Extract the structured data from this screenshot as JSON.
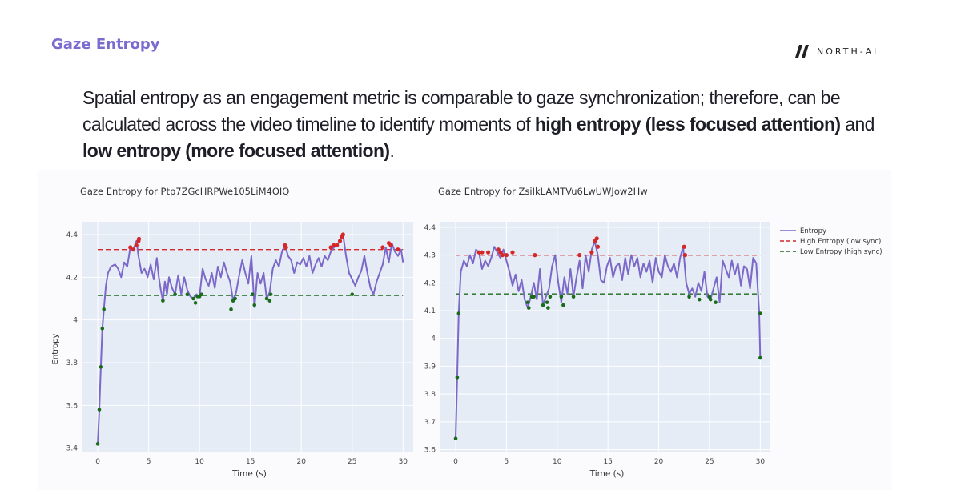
{
  "header": {
    "title": "Gaze Entropy",
    "logo_text": "NORTH-AI"
  },
  "body_text": {
    "part1": "Spatial entropy as an engagement metric is comparable to gaze synchronization; therefore, can be calculated across the video timeline to identify moments of ",
    "bold1": "high entropy (less focused attention)",
    "part2": " and ",
    "bold2": "low entropy (more focused attention)",
    "part3": "."
  },
  "colors": {
    "entropy_line": "#7b68c8",
    "high_threshold": "#d62728",
    "low_threshold": "#1a6b1a",
    "plot_bg": "#e5ecf6",
    "grid": "#ffffff"
  },
  "chart_data": [
    {
      "type": "line",
      "title": "Gaze Entropy for Ptp7ZGcHRPWe105LiM4OIQ",
      "xlabel": "Time (s)",
      "ylabel": "Entropy",
      "xlim": [
        -1.5,
        31
      ],
      "ylim": [
        3.38,
        4.46
      ],
      "xticks": [
        0,
        5,
        10,
        15,
        20,
        25,
        30
      ],
      "yticks": [
        3.4,
        3.6,
        3.8,
        4,
        4.2,
        4.4
      ],
      "ytick_labels": [
        "3.4",
        "3.6",
        "3.8",
        "4",
        "4.2",
        "4.4"
      ],
      "high_threshold": 4.33,
      "low_threshold": 4.115,
      "series": [
        {
          "name": "Entropy",
          "x": [
            0.0,
            0.15,
            0.3,
            0.45,
            0.6,
            0.8,
            1.0,
            1.3,
            1.7,
            2.0,
            2.3,
            2.6,
            2.9,
            3.2,
            3.5,
            3.8,
            4.0,
            4.3,
            4.6,
            4.9,
            5.2,
            5.5,
            5.8,
            6.0,
            6.2,
            6.4,
            6.6,
            6.8,
            7.0,
            7.3,
            7.6,
            7.9,
            8.2,
            8.5,
            8.8,
            9.1,
            9.4,
            9.7,
            10.0,
            10.3,
            10.6,
            10.9,
            11.2,
            11.5,
            11.8,
            12.1,
            12.4,
            12.7,
            13.0,
            13.3,
            13.6,
            13.9,
            14.2,
            14.5,
            14.8,
            15.1,
            15.4,
            15.7,
            16.0,
            16.3,
            16.6,
            16.9,
            17.2,
            17.5,
            17.8,
            18.1,
            18.4,
            18.7,
            19.0,
            19.3,
            19.6,
            19.9,
            20.2,
            20.5,
            20.8,
            21.1,
            21.4,
            21.7,
            22.0,
            22.3,
            22.6,
            22.9,
            23.2,
            23.5,
            23.8,
            24.1,
            24.4,
            24.7,
            25.0,
            25.3,
            25.6,
            25.9,
            26.2,
            26.5,
            26.8,
            27.1,
            27.4,
            27.7,
            28.0,
            28.3,
            28.6,
            28.9,
            29.2,
            29.5,
            29.8,
            30.0
          ],
          "values": [
            3.42,
            3.58,
            3.78,
            3.96,
            4.05,
            4.16,
            4.22,
            4.25,
            4.26,
            4.24,
            4.2,
            4.27,
            4.25,
            4.34,
            4.33,
            4.37,
            4.3,
            4.22,
            4.24,
            4.2,
            4.26,
            4.19,
            4.29,
            4.2,
            4.14,
            4.09,
            4.18,
            4.12,
            4.2,
            4.15,
            4.12,
            4.21,
            4.12,
            4.2,
            4.14,
            4.11,
            4.1,
            4.12,
            4.11,
            4.24,
            4.19,
            4.16,
            4.22,
            4.15,
            4.25,
            4.2,
            4.27,
            4.22,
            4.18,
            4.09,
            4.13,
            4.21,
            4.28,
            4.22,
            4.17,
            4.3,
            4.06,
            4.22,
            4.17,
            4.22,
            4.1,
            4.13,
            4.24,
            4.28,
            4.25,
            4.32,
            4.35,
            4.3,
            4.28,
            4.22,
            4.27,
            4.26,
            4.29,
            4.25,
            4.3,
            4.22,
            4.26,
            4.29,
            4.25,
            4.3,
            4.28,
            4.32,
            4.34,
            4.35,
            4.37,
            4.4,
            4.3,
            4.22,
            4.19,
            4.16,
            4.2,
            4.23,
            4.3,
            4.22,
            4.15,
            4.12,
            4.18,
            4.22,
            4.26,
            4.34,
            4.27,
            4.36,
            4.32,
            4.3,
            4.33,
            4.27
          ]
        }
      ],
      "high_markers": [
        [
          3.2,
          4.34
        ],
        [
          3.5,
          4.33
        ],
        [
          3.8,
          4.35
        ],
        [
          4.0,
          4.37
        ],
        [
          4.05,
          4.38
        ],
        [
          18.4,
          4.35
        ],
        [
          18.5,
          4.34
        ],
        [
          22.9,
          4.34
        ],
        [
          23.2,
          4.35
        ],
        [
          23.5,
          4.35
        ],
        [
          23.8,
          4.37
        ],
        [
          24.1,
          4.4
        ],
        [
          24.0,
          4.39
        ],
        [
          28.0,
          4.34
        ],
        [
          28.6,
          4.36
        ],
        [
          28.8,
          4.35
        ],
        [
          29.5,
          4.33
        ]
      ],
      "low_markers": [
        [
          0.0,
          3.42
        ],
        [
          0.15,
          3.58
        ],
        [
          0.3,
          3.78
        ],
        [
          0.45,
          3.96
        ],
        [
          0.6,
          4.05
        ],
        [
          6.4,
          4.09
        ],
        [
          7.6,
          4.12
        ],
        [
          8.8,
          4.12
        ],
        [
          9.4,
          4.1
        ],
        [
          9.6,
          4.08
        ],
        [
          9.8,
          4.11
        ],
        [
          10.0,
          4.11
        ],
        [
          10.2,
          4.12
        ],
        [
          13.1,
          4.05
        ],
        [
          13.3,
          4.09
        ],
        [
          13.5,
          4.1
        ],
        [
          15.4,
          4.07
        ],
        [
          15.2,
          4.12
        ],
        [
          16.6,
          4.1
        ],
        [
          16.9,
          4.09
        ],
        [
          17.0,
          4.12
        ],
        [
          25.0,
          4.12
        ]
      ]
    },
    {
      "type": "line",
      "title": "Gaze Entropy for ZsiIkLAMTVu6LwUWJow2Hw",
      "xlabel": "Time (s)",
      "ylabel": "",
      "xlim": [
        -1.5,
        31
      ],
      "ylim": [
        3.59,
        4.42
      ],
      "xticks": [
        0,
        5,
        10,
        15,
        20,
        25,
        30
      ],
      "yticks": [
        3.6,
        3.7,
        3.8,
        3.9,
        4,
        4.1,
        4.2,
        4.3,
        4.4
      ],
      "ytick_labels": [
        "3.6",
        "3.7",
        "3.8",
        "3.9",
        "4",
        "4.1",
        "4.2",
        "4.3",
        "4.4"
      ],
      "high_threshold": 4.3,
      "low_threshold": 4.16,
      "series": [
        {
          "name": "Entropy",
          "x": [
            0.0,
            0.15,
            0.3,
            0.5,
            0.8,
            1.1,
            1.4,
            1.7,
            2.0,
            2.3,
            2.6,
            2.9,
            3.2,
            3.5,
            3.8,
            4.1,
            4.4,
            4.7,
            5.0,
            5.3,
            5.6,
            5.9,
            6.2,
            6.5,
            6.8,
            7.1,
            7.4,
            7.7,
            8.0,
            8.3,
            8.6,
            8.9,
            9.2,
            9.5,
            9.8,
            10.1,
            10.4,
            10.7,
            11.0,
            11.3,
            11.6,
            11.9,
            12.2,
            12.5,
            12.8,
            13.1,
            13.4,
            13.7,
            14.0,
            14.3,
            14.6,
            14.9,
            15.2,
            15.5,
            15.8,
            16.1,
            16.4,
            16.7,
            17.0,
            17.3,
            17.6,
            17.9,
            18.2,
            18.5,
            18.8,
            19.1,
            19.4,
            19.7,
            20.0,
            20.3,
            20.6,
            20.9,
            21.2,
            21.5,
            21.8,
            22.1,
            22.4,
            22.7,
            23.0,
            23.3,
            23.6,
            23.9,
            24.2,
            24.5,
            24.8,
            25.1,
            25.4,
            25.7,
            26.0,
            26.3,
            26.6,
            26.9,
            27.2,
            27.5,
            27.8,
            28.1,
            28.4,
            28.7,
            29.0,
            29.3,
            29.6,
            29.9,
            30.0
          ],
          "values": [
            3.64,
            3.86,
            4.09,
            4.24,
            4.28,
            4.26,
            4.3,
            4.27,
            4.32,
            4.31,
            4.25,
            4.28,
            4.26,
            4.29,
            4.33,
            4.31,
            4.29,
            4.32,
            4.28,
            4.24,
            4.19,
            4.23,
            4.17,
            4.21,
            4.14,
            4.11,
            4.15,
            4.2,
            4.14,
            4.25,
            4.12,
            4.15,
            4.18,
            4.26,
            4.3,
            4.2,
            4.13,
            4.22,
            4.16,
            4.25,
            4.15,
            4.22,
            4.28,
            4.18,
            4.3,
            4.24,
            4.32,
            4.35,
            4.3,
            4.21,
            4.2,
            4.26,
            4.29,
            4.22,
            4.26,
            4.27,
            4.21,
            4.29,
            4.23,
            4.3,
            4.26,
            4.29,
            4.22,
            4.27,
            4.24,
            4.28,
            4.2,
            4.29,
            4.24,
            4.22,
            4.3,
            4.26,
            4.24,
            4.27,
            4.22,
            4.29,
            4.33,
            4.2,
            4.16,
            4.18,
            4.15,
            4.2,
            4.17,
            4.24,
            4.15,
            4.14,
            4.18,
            4.22,
            4.13,
            4.28,
            4.25,
            4.22,
            4.28,
            4.23,
            4.27,
            4.19,
            4.26,
            4.25,
            4.18,
            4.29,
            4.27,
            4.09,
            3.93
          ]
        }
      ],
      "high_markers": [
        [
          2.3,
          4.31
        ],
        [
          2.6,
          4.31
        ],
        [
          3.2,
          4.31
        ],
        [
          4.2,
          4.32
        ],
        [
          4.4,
          4.31
        ],
        [
          4.6,
          4.3
        ],
        [
          5.0,
          4.3
        ],
        [
          5.6,
          4.31
        ],
        [
          7.8,
          4.3
        ],
        [
          12.2,
          4.3
        ],
        [
          13.4,
          4.31
        ],
        [
          13.7,
          4.35
        ],
        [
          13.9,
          4.36
        ],
        [
          14.0,
          4.33
        ],
        [
          22.5,
          4.33
        ],
        [
          22.6,
          4.3
        ]
      ],
      "low_markers": [
        [
          0.0,
          3.64
        ],
        [
          0.15,
          3.86
        ],
        [
          0.3,
          4.09
        ],
        [
          7.1,
          4.13
        ],
        [
          7.2,
          4.11
        ],
        [
          7.5,
          4.15
        ],
        [
          7.7,
          4.15
        ],
        [
          8.6,
          4.12
        ],
        [
          9.0,
          4.13
        ],
        [
          9.1,
          4.11
        ],
        [
          9.3,
          4.15
        ],
        [
          10.4,
          4.15
        ],
        [
          10.6,
          4.12
        ],
        [
          11.6,
          4.15
        ],
        [
          23.0,
          4.15
        ],
        [
          24.0,
          4.14
        ],
        [
          25.0,
          4.15
        ],
        [
          25.1,
          4.14
        ],
        [
          25.6,
          4.13
        ],
        [
          30.0,
          4.09
        ],
        [
          30.0,
          3.93
        ]
      ]
    }
  ],
  "legend": {
    "entropy": "Entropy",
    "high": "High Entropy (low sync)",
    "low": "Low Entropy (high sync)"
  }
}
